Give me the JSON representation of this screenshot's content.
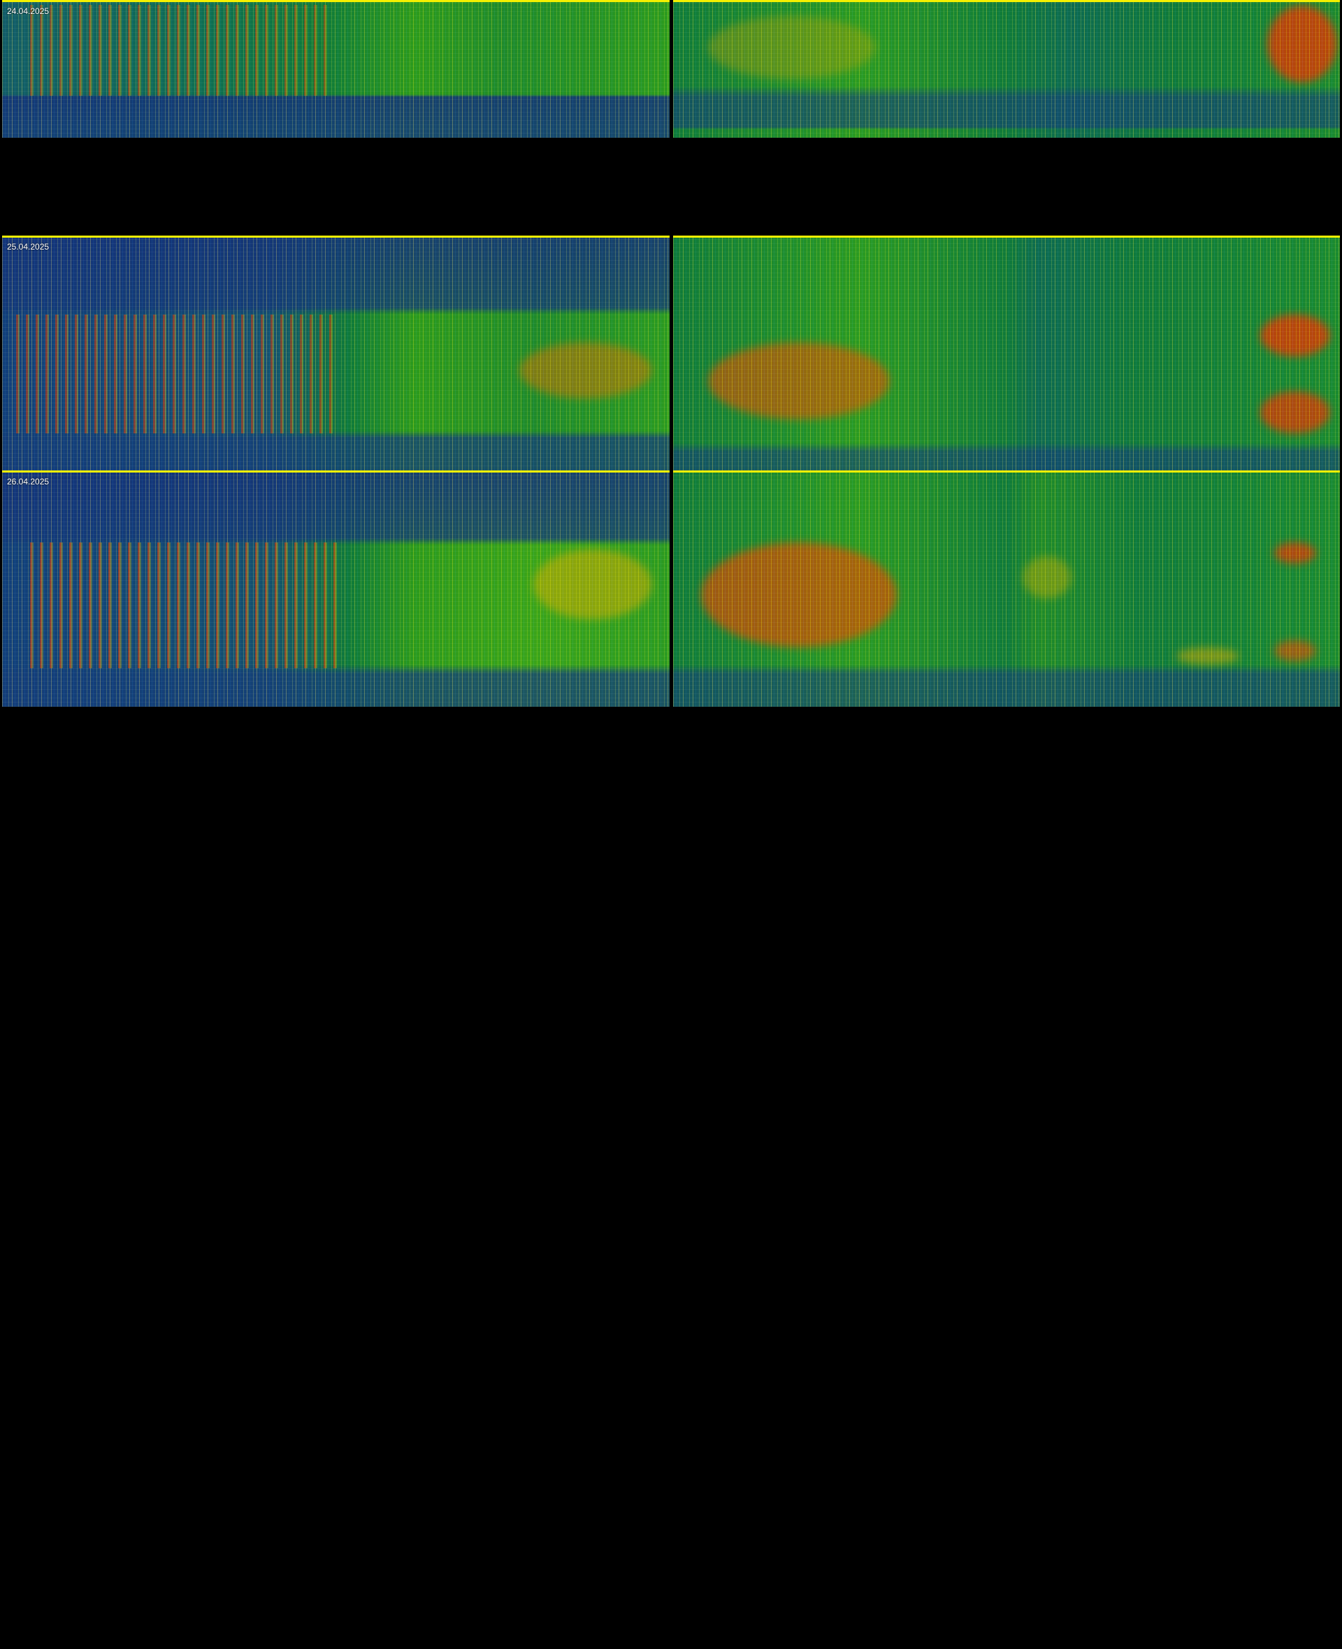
{
  "rows": [
    {
      "date": "24.04.2025"
    },
    {
      "date": "25.04.2025"
    },
    {
      "date": "26.04.2025"
    }
  ],
  "colors": {
    "background": "#000000",
    "border": "#f4f000",
    "low": "#123a78",
    "mid": "#0f8a3a",
    "high_green": "#7fc400",
    "peak": "#e83a00",
    "label": "#ffffff"
  }
}
